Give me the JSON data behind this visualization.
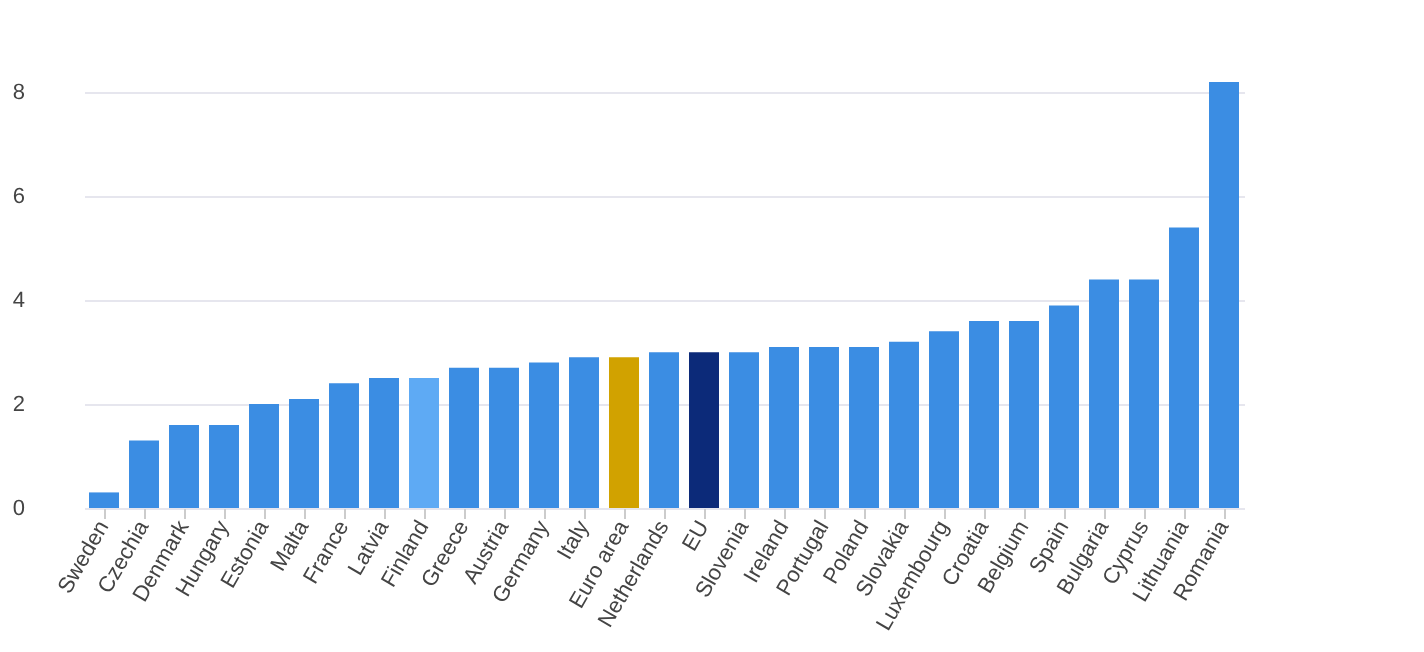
{
  "chart_data": {
    "type": "bar",
    "categories": [
      "Sweden",
      "Czechia",
      "Denmark",
      "Hungary",
      "Estonia",
      "Malta",
      "France",
      "Latvia",
      "Finland",
      "Greece",
      "Austria",
      "Germany",
      "Italy",
      "Euro area",
      "Netherlands",
      "EU",
      "Slovenia",
      "Ireland",
      "Portugal",
      "Poland",
      "Slovakia",
      "Luxembourg",
      "Croatia",
      "Belgium",
      "Spain",
      "Bulgaria",
      "Cyprus",
      "Lithuania",
      "Romania"
    ],
    "values": [
      0.3,
      1.3,
      1.6,
      1.6,
      2.0,
      2.1,
      2.4,
      2.5,
      2.5,
      2.7,
      2.7,
      2.8,
      2.9,
      2.9,
      3.0,
      3.0,
      3.0,
      3.1,
      3.1,
      3.1,
      3.2,
      3.4,
      3.6,
      3.6,
      3.9,
      4.4,
      4.4,
      5.4,
      8.2
    ],
    "colors": [
      "#3b8de3",
      "#3b8de3",
      "#3b8de3",
      "#3b8de3",
      "#3b8de3",
      "#3b8de3",
      "#3b8de3",
      "#3b8de3",
      "#5eaaf4",
      "#3b8de3",
      "#3b8de3",
      "#3b8de3",
      "#3b8de3",
      "#d1a200",
      "#3b8de3",
      "#0c2a79",
      "#3b8de3",
      "#3b8de3",
      "#3b8de3",
      "#3b8de3",
      "#3b8de3",
      "#3b8de3",
      "#3b8de3",
      "#3b8de3",
      "#3b8de3",
      "#3b8de3",
      "#3b8de3",
      "#3b8de3",
      "#3b8de3"
    ],
    "ylim": [
      0,
      8.2
    ],
    "yticks": [
      0,
      2,
      4,
      6,
      8
    ],
    "grid": "y"
  }
}
